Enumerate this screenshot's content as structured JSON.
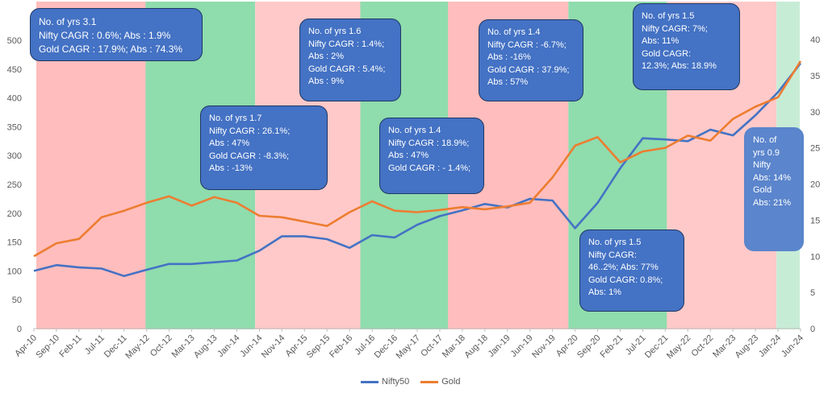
{
  "chart_data": {
    "type": "line",
    "x": [
      "Apr-10",
      "Sep-10",
      "Feb-11",
      "Jul-11",
      "Dec-11",
      "May-12",
      "Oct-12",
      "Mar-13",
      "Aug-13",
      "Jan-14",
      "Jun-14",
      "Nov-14",
      "Apr-15",
      "Sep-15",
      "Feb-16",
      "Jul-16",
      "Dec-16",
      "May-17",
      "Oct-17",
      "Mar-18",
      "Aug-18",
      "Jan-19",
      "Jun-19",
      "Nov-19",
      "Apr-20",
      "Sep-20",
      "Feb-21",
      "Jul-21",
      "Dec-21",
      "May-22",
      "Oct-22",
      "Mar-23",
      "Aug-23",
      "Jan-24",
      "Jun-24"
    ],
    "series": [
      {
        "name": "Nifty50",
        "color": "#4472c4",
        "axis": "left",
        "values": [
          100,
          110,
          106,
          104,
          91,
          102,
          112,
          112,
          115,
          118,
          135,
          160,
          160,
          155,
          140,
          162,
          158,
          180,
          195,
          205,
          216,
          210,
          225,
          222,
          174,
          218,
          278,
          330,
          328,
          325,
          345,
          335,
          370,
          410,
          460
        ]
      },
      {
        "name": "Gold",
        "color": "#ed7d31",
        "axis": "right",
        "values": [
          10,
          11.8,
          12.4,
          15.4,
          16.3,
          17.4,
          18.3,
          17,
          18.2,
          17.4,
          15.6,
          15.4,
          14.8,
          14.2,
          16.1,
          17.6,
          16.3,
          16.1,
          16.4,
          16.8,
          16.5,
          16.9,
          17.4,
          20.9,
          25.3,
          26.5,
          23,
          24.5,
          25,
          26.7,
          26,
          29,
          30.7,
          32,
          37
        ]
      }
    ],
    "ylim_left": [
      0,
      550
    ],
    "yticks_left": [
      "0",
      "50",
      "100",
      "150",
      "200",
      "250",
      "300",
      "350",
      "400",
      "450",
      "500"
    ],
    "ylim_right": [
      0,
      44
    ],
    "yticks_right": [
      "0",
      "5",
      "10",
      "15",
      "20",
      "25",
      "30",
      "35",
      "40"
    ],
    "grid": false,
    "legend_position": "bottom",
    "periods": [
      {
        "from": 0,
        "to": 10.2,
        "color": "#ffbdbd"
      },
      {
        "from": 10.2,
        "to": 20.2,
        "color": "#8fdcad"
      },
      {
        "from": 20.2,
        "to": 29.8,
        "color": "#ffc9c9"
      },
      {
        "from": 29.8,
        "to": 37.8,
        "color": "#8fdcad"
      },
      {
        "from": 37.8,
        "to": 48.8,
        "color": "#ffbdbd"
      },
      {
        "from": 48.8,
        "to": 57.8,
        "color": "#8fdcad"
      },
      {
        "from": 57.8,
        "to": 67.8,
        "color": "#ffc9c9"
      },
      {
        "from": 67.8,
        "to": 70,
        "color": "#c7ecd6"
      }
    ]
  },
  "annotations": [
    {
      "id": "ann1",
      "style": "big",
      "text": "No. of yrs 3.1\nNifty CAGR : 0.6%; Abs : 1.9%\nGold CAGR : 17.9%; Abs : 74.3%"
    },
    {
      "id": "ann2",
      "style": "",
      "text": "No. of yrs 1.7\nNifty CAGR : 26.1%;\nAbs : 47%\nGold CAGR :  -8.3%;\nAbs :  -13%"
    },
    {
      "id": "ann3",
      "style": "",
      "text": "No. of yrs 1.6\nNifty CAGR : 1.4%;\nAbs : 2%\nGold CAGR : 5.4%;\nAbs : 9%"
    },
    {
      "id": "ann4",
      "style": "",
      "text": "No. of yrs 1.4\nNifty CAGR : 18.9%;\nAbs : 47%\nGold CAGR : - 1.4%;"
    },
    {
      "id": "ann5",
      "style": "",
      "text": "No. of yrs 1.4\nNifty CAGR : -6.7%;\nAbs : -16%\nGold CAGR :  37.9%;\nAbs : 57%"
    },
    {
      "id": "ann6",
      "style": "",
      "text": "No. of yrs 1.5\nNifty CAGR:\n46..2%; Abs: 77%\nGold CAGR:  0.8%;\nAbs: 1%"
    },
    {
      "id": "ann7",
      "style": "",
      "text": "No. of yrs 1.5\nNifty CAGR: 7%;\nAbs: 11%\nGold CAGR:\n12.3%; Abs: 18.9%"
    },
    {
      "id": "ann8",
      "style": "soft",
      "text": "No. of\nyrs 0.9\nNifty\nAbs: 14%\nGold\nAbs: 21%"
    }
  ]
}
